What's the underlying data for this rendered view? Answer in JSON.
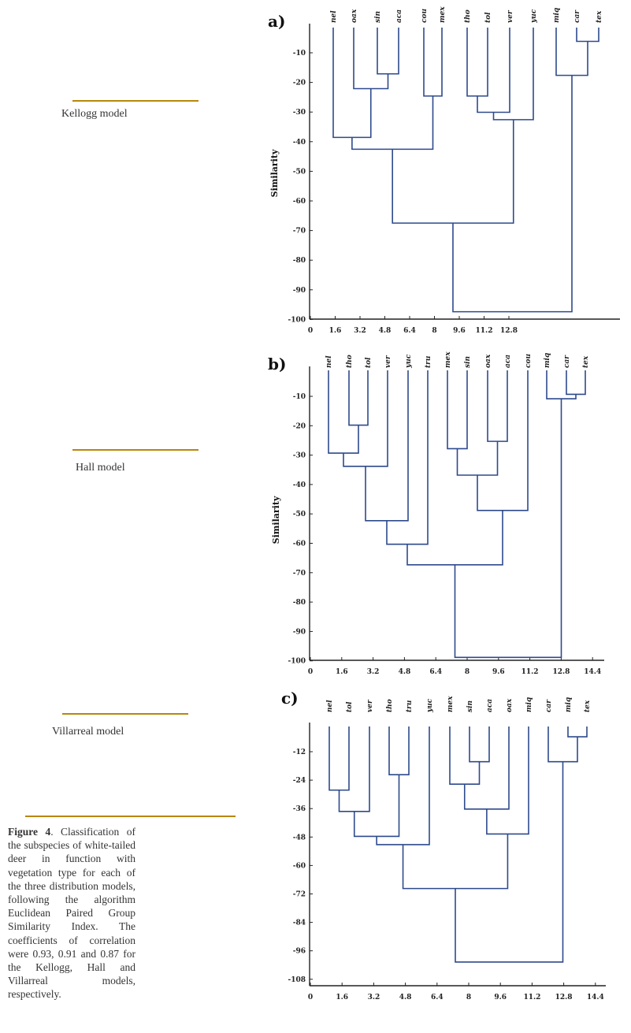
{
  "side_labels": {
    "kellogg": "Kellogg model",
    "hall": "Hall model",
    "villarreal": "Villarreal model"
  },
  "caption": {
    "lead": "Figure 4",
    "text": ". Classification of the subspecies of white-tailed deer in function with vegetation type for each of the three distribution models, following the algorithm Euclidean Paired Group Similarity Index. The coefficients of correlation were 0.93, 0.91 and 0.87 for the Kellogg, Hall and Villarreal models, respectively."
  },
  "colors": {
    "tree": "#2e4a8c",
    "axis": "#222222",
    "rule": "#b8860b"
  },
  "chart_data": [
    {
      "type": "dendrogram",
      "panel_label": "a)",
      "ylabel": "Similarity",
      "yticks": [
        -10,
        -20,
        -30,
        -40,
        -50,
        -60,
        -70,
        -80,
        -90,
        -100
      ],
      "xticks": [
        "0",
        "1.6",
        "3.2",
        "4.8",
        "6.4",
        "8",
        "9.6",
        "11.2",
        "12.8"
      ],
      "leaves": [
        "nel",
        "oax",
        "sin",
        "aca",
        "cou",
        "mex",
        "tho",
        "tol",
        "ver",
        "yuc",
        "miq",
        "car",
        "tex"
      ],
      "merges": [
        {
          "a": 2,
          "b": 3,
          "sim": -17
        },
        {
          "a": 1,
          "b": "m0",
          "sim": -22
        },
        {
          "a": 0,
          "b": "m1",
          "sim": -38.5
        },
        {
          "a": 4,
          "b": 5,
          "sim": -24.5
        },
        {
          "a": "m2",
          "b": "m3",
          "sim": -42.5
        },
        {
          "a": 6,
          "b": 7,
          "sim": -24.5
        },
        {
          "a": "m5",
          "b": 8,
          "sim": -30
        },
        {
          "a": "m6",
          "b": 9,
          "sim": -32.5
        },
        {
          "a": "m4",
          "b": "m7",
          "sim": -67.5
        },
        {
          "a": 11,
          "b": 12,
          "sim": -6
        },
        {
          "a": 10,
          "b": "m9",
          "sim": -17.5
        },
        {
          "a": "m8",
          "b": "m10",
          "sim": -97.5
        }
      ]
    },
    {
      "type": "dendrogram",
      "panel_label": "b)",
      "ylabel": "Similarity",
      "yticks": [
        -10,
        -20,
        -30,
        -40,
        -50,
        -60,
        -70,
        -80,
        -90,
        -100
      ],
      "xticks": [
        "0",
        "1.6",
        "3.2",
        "4.8",
        "6.4",
        "8",
        "9.6",
        "11.2",
        "12.8",
        "14.4"
      ],
      "leaves": [
        "nel",
        "tho",
        "tol",
        "ver",
        "yuc",
        "tru",
        "mex",
        "sin",
        "oax",
        "aca",
        "cou",
        "miq",
        "car",
        "tex"
      ],
      "merges": [
        {
          "a": 1,
          "b": 2,
          "sim": -20
        },
        {
          "a": 0,
          "b": "m0",
          "sim": -29.5
        },
        {
          "a": "m1",
          "b": 3,
          "sim": -34
        },
        {
          "a": "m2",
          "b": 4,
          "sim": -52.5
        },
        {
          "a": "m3",
          "b": 5,
          "sim": -60.5
        },
        {
          "a": 6,
          "b": 7,
          "sim": -28
        },
        {
          "a": 8,
          "b": 9,
          "sim": -25.5
        },
        {
          "a": "m5",
          "b": "m6",
          "sim": -37
        },
        {
          "a": "m7",
          "b": 10,
          "sim": -49
        },
        {
          "a": "m4",
          "b": "m8",
          "sim": -67.5
        },
        {
          "a": 12,
          "b": 13,
          "sim": -9.5
        },
        {
          "a": 11,
          "b": "m10",
          "sim": -11
        },
        {
          "a": "m9",
          "b": "m11",
          "sim": -99
        }
      ]
    },
    {
      "type": "dendrogram",
      "panel_label": "c)",
      "ylabel": "",
      "yticks": [
        -12,
        -24,
        -36,
        -48,
        -60,
        -72,
        -84,
        -96,
        -108
      ],
      "xticks": [
        "0",
        "1.6",
        "3.2",
        "4.8",
        "6.4",
        "8",
        "9.6",
        "11.2",
        "12.8",
        "14.4"
      ],
      "leaves": [
        "nel",
        "tol",
        "ver",
        "tho",
        "tru",
        "yuc",
        "mex",
        "sin",
        "aca",
        "oax",
        "miq",
        "car",
        "miq",
        "tex"
      ],
      "merges": [
        {
          "a": 0,
          "b": 1,
          "sim": -28.5
        },
        {
          "a": "m0",
          "b": 2,
          "sim": -37.5
        },
        {
          "a": 3,
          "b": 4,
          "sim": -22
        },
        {
          "a": "m1",
          "b": "m2",
          "sim": -48
        },
        {
          "a": "m3",
          "b": 5,
          "sim": -51.5
        },
        {
          "a": 7,
          "b": 8,
          "sim": -16.5
        },
        {
          "a": 6,
          "b": "m5",
          "sim": -26
        },
        {
          "a": "m6",
          "b": 9,
          "sim": -36.5
        },
        {
          "a": "m7",
          "b": 10,
          "sim": -47
        },
        {
          "a": "m4",
          "b": "m8",
          "sim": -70
        },
        {
          "a": 12,
          "b": 13,
          "sim": -6
        },
        {
          "a": 11,
          "b": "m10",
          "sim": -16.5
        },
        {
          "a": "m9",
          "b": "m11",
          "sim": -101
        }
      ]
    }
  ]
}
